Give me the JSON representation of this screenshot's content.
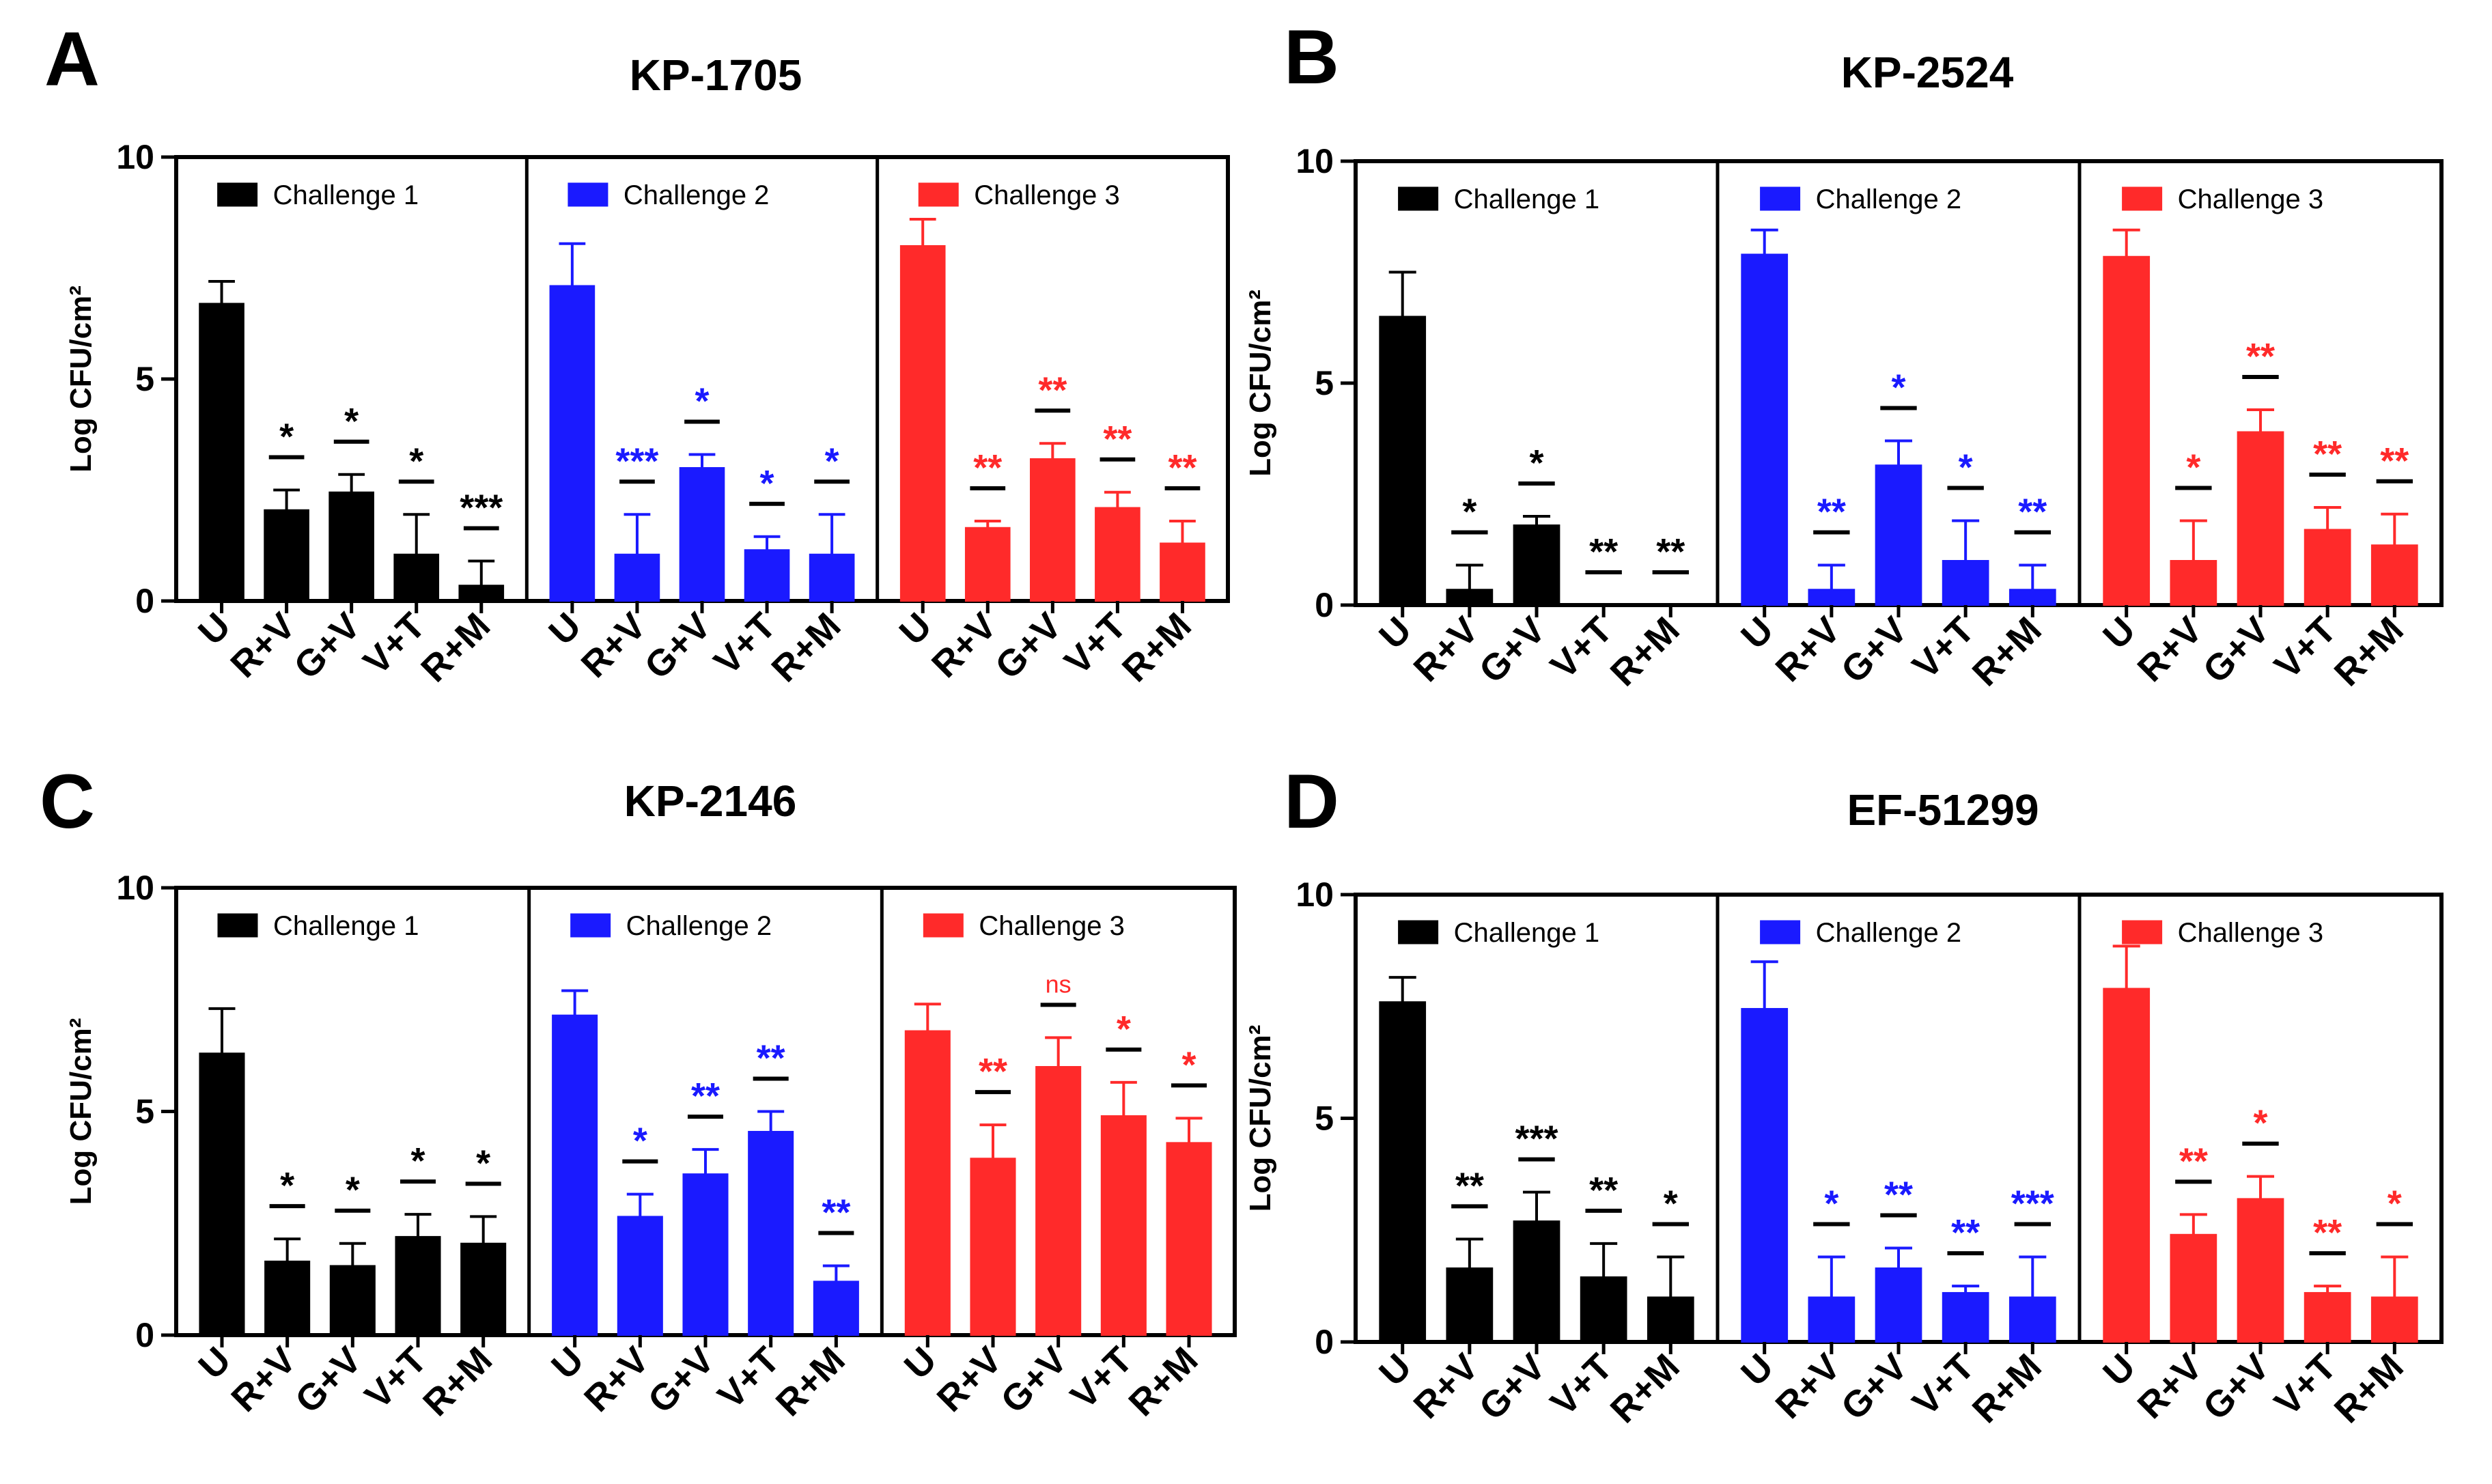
{
  "chart_data": [
    {
      "type": "bar",
      "panel_letter": "A",
      "title": "KP-1705",
      "ylabel": "Log CFU/cm²",
      "ylim": [
        0,
        10
      ],
      "yticks": [
        "0",
        "5",
        "10"
      ],
      "categories": [
        "U",
        "R+V",
        "G+V",
        "V+T",
        "R+M"
      ],
      "colors": [
        "#000000",
        "#1a1aff",
        "#ff2a2a"
      ],
      "legend_placement": "top",
      "series": [
        {
          "name": "Challenge 1",
          "values": [
            6.7,
            2.05,
            2.45,
            1.05,
            0.35
          ],
          "errors": [
            0.5,
            0.45,
            0.4,
            0.9,
            0.55
          ],
          "sig": [
            "",
            "*",
            "*",
            "*",
            "***"
          ]
        },
        {
          "name": "Challenge 2",
          "values": [
            7.1,
            1.05,
            3.0,
            1.15,
            1.05
          ],
          "errors": [
            0.95,
            0.9,
            0.3,
            0.3,
            0.9
          ],
          "sig": [
            "",
            "***",
            "*",
            "*",
            "*"
          ]
        },
        {
          "name": "Challenge 3",
          "values": [
            8.0,
            1.65,
            3.2,
            2.1,
            1.3
          ],
          "errors": [
            0.6,
            0.15,
            0.35,
            0.35,
            0.5
          ],
          "sig": [
            "",
            "**",
            "**",
            "**",
            "**"
          ]
        }
      ]
    },
    {
      "type": "bar",
      "panel_letter": "B",
      "title": "KP-2524",
      "ylabel": "Log CFU/cm²",
      "ylim": [
        0,
        10
      ],
      "yticks": [
        "0",
        "5",
        "10"
      ],
      "categories": [
        "U",
        "R+V",
        "G+V",
        "V+T",
        "R+M"
      ],
      "colors": [
        "#000000",
        "#1a1aff",
        "#ff2a2a"
      ],
      "legend_placement": "top",
      "series": [
        {
          "name": "Challenge 1",
          "values": [
            6.5,
            0.35,
            1.8,
            0,
            0
          ],
          "errors": [
            1.0,
            0.55,
            0.2,
            0,
            0
          ],
          "sig": [
            "",
            "*",
            "*",
            "**",
            "**"
          ]
        },
        {
          "name": "Challenge 2",
          "values": [
            7.9,
            0.35,
            3.15,
            1.0,
            0.35
          ],
          "errors": [
            0.55,
            0.55,
            0.55,
            0.9,
            0.55
          ],
          "sig": [
            "",
            "**",
            "*",
            "*",
            "**"
          ]
        },
        {
          "name": "Challenge 3",
          "values": [
            7.85,
            1.0,
            3.9,
            1.7,
            1.35
          ],
          "errors": [
            0.6,
            0.9,
            0.5,
            0.5,
            0.7
          ],
          "sig": [
            "",
            "*",
            "**",
            "**",
            "**"
          ]
        }
      ]
    },
    {
      "type": "bar",
      "panel_letter": "C",
      "title": "KP-2146",
      "ylabel": "Log CFU/cm²",
      "ylim": [
        0,
        10
      ],
      "yticks": [
        "0",
        "5",
        "10"
      ],
      "categories": [
        "U",
        "R+V",
        "G+V",
        "V+T",
        "R+M"
      ],
      "colors": [
        "#000000",
        "#1a1aff",
        "#ff2a2a"
      ],
      "legend_placement": "top",
      "series": [
        {
          "name": "Challenge 1",
          "values": [
            6.3,
            1.65,
            1.55,
            2.2,
            2.05
          ],
          "errors": [
            1.0,
            0.5,
            0.5,
            0.5,
            0.6
          ],
          "sig": [
            "",
            "*",
            "*",
            "*",
            "*"
          ]
        },
        {
          "name": "Challenge 2",
          "values": [
            7.15,
            2.65,
            3.6,
            4.55,
            1.2
          ],
          "errors": [
            0.55,
            0.5,
            0.55,
            0.45,
            0.35
          ],
          "sig": [
            "",
            "*",
            "**",
            "**",
            "**"
          ]
        },
        {
          "name": "Challenge 3",
          "values": [
            6.8,
            3.95,
            6.0,
            4.9,
            4.3
          ],
          "errors": [
            0.6,
            0.75,
            0.65,
            0.75,
            0.55
          ],
          "sig": [
            "",
            "**",
            "ns",
            "*",
            "*"
          ]
        }
      ]
    },
    {
      "type": "bar",
      "panel_letter": "D",
      "title": "EF-51299",
      "ylabel": "Log CFU/cm²",
      "ylim": [
        0,
        10
      ],
      "yticks": [
        "0",
        "5",
        "10"
      ],
      "categories": [
        "U",
        "R+V",
        "G+V",
        "V+T",
        "R+M"
      ],
      "colors": [
        "#000000",
        "#1a1aff",
        "#ff2a2a"
      ],
      "legend_placement": "top",
      "series": [
        {
          "name": "Challenge 1",
          "values": [
            7.6,
            1.65,
            2.7,
            1.45,
            1.0
          ],
          "errors": [
            0.55,
            0.65,
            0.65,
            0.75,
            0.9
          ],
          "sig": [
            "",
            "**",
            "***",
            "**",
            "*"
          ]
        },
        {
          "name": "Challenge 2",
          "values": [
            7.45,
            1.0,
            1.65,
            1.1,
            1.0
          ],
          "errors": [
            1.05,
            0.9,
            0.45,
            0.15,
            0.9
          ],
          "sig": [
            "",
            "*",
            "**",
            "**",
            "***"
          ]
        },
        {
          "name": "Challenge 3",
          "values": [
            7.9,
            2.4,
            3.2,
            1.1,
            1.0
          ],
          "errors": [
            0.95,
            0.45,
            0.5,
            0.15,
            0.9
          ],
          "sig": [
            "",
            "**",
            "*",
            "**",
            "*"
          ]
        }
      ]
    }
  ]
}
